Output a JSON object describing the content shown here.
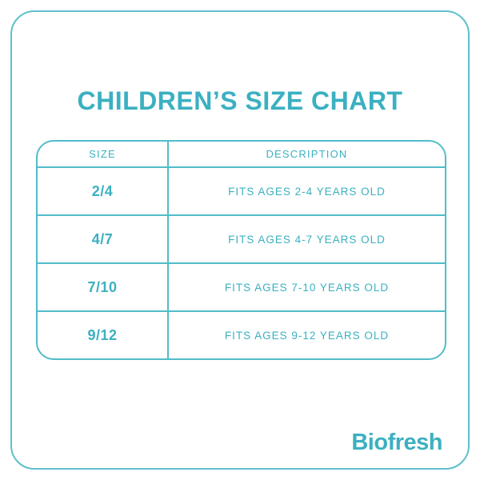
{
  "page": {
    "title": "CHILDREN’S SIZE CHART",
    "background_color": "#ffffff",
    "accent_text_color": "#3bb0c1",
    "line_color": "#52bcc9"
  },
  "table": {
    "headers": [
      "SIZE",
      "DESCRIPTION"
    ],
    "rows": [
      {
        "size": "2/4",
        "description": "FITS AGES 2-4 YEARS OLD"
      },
      {
        "size": "4/7",
        "description": "FITS AGES 4-7 YEARS OLD"
      },
      {
        "size": "7/10",
        "description": "FITS AGES 7-10 YEARS OLD"
      },
      {
        "size": "9/12",
        "description": "FITS AGES 9-12 YEARS OLD"
      }
    ]
  },
  "brand": {
    "logo_text": "Biofresh"
  }
}
